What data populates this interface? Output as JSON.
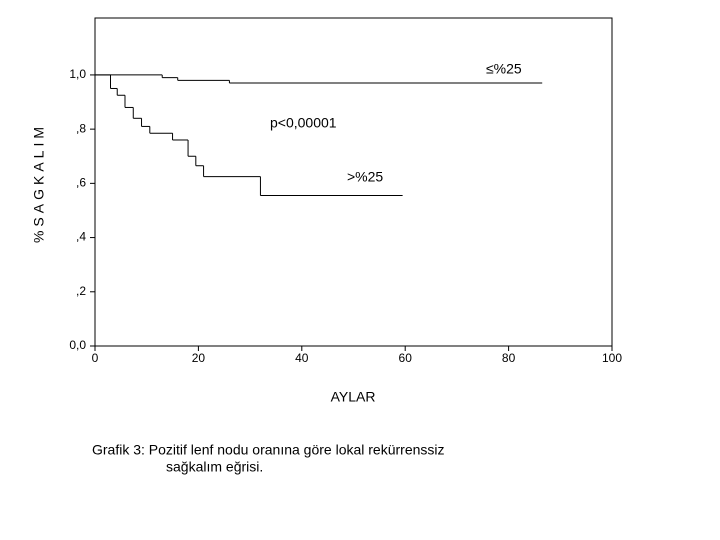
{
  "chart_data": {
    "type": "step",
    "xlabel": "AYLAR",
    "ylabel": "%SAGKALIM",
    "annotation": "p<0,00001",
    "caption": [
      "Grafik 3: Pozitif lenf nodu oranına göre lokal rekürrenssiz",
      "sağkalım eğrisi."
    ],
    "xlim": [
      0,
      100
    ],
    "xticks": [
      0,
      20,
      40,
      60,
      80,
      100
    ],
    "ylim": [
      0,
      1.21
    ],
    "yticks": [
      {
        "value": 0,
        "label": "0,0"
      },
      {
        "value": 0.2,
        "label": ",2"
      },
      {
        "value": 0.4,
        "label": ",4"
      },
      {
        "value": 0.6,
        "label": ",6"
      },
      {
        "value": 0.8,
        "label": ",8"
      },
      {
        "value": 1.0,
        "label": "1,0"
      }
    ],
    "series": [
      {
        "name": "≤%25",
        "color": "#000000",
        "x": [
          0,
          13,
          16,
          26,
          86.5
        ],
        "values": [
          1.0,
          0.99,
          0.98,
          0.97,
          0.97
        ]
      },
      {
        "name": ">%25",
        "color": "#000000",
        "x": [
          0,
          3,
          4.3,
          5.8,
          7.4,
          9,
          10.6,
          15,
          18,
          19.5,
          21,
          32,
          59.5
        ],
        "values": [
          1.0,
          0.95,
          0.925,
          0.88,
          0.84,
          0.81,
          0.785,
          0.76,
          0.7,
          0.665,
          0.625,
          0.555,
          0.555
        ]
      }
    ]
  }
}
